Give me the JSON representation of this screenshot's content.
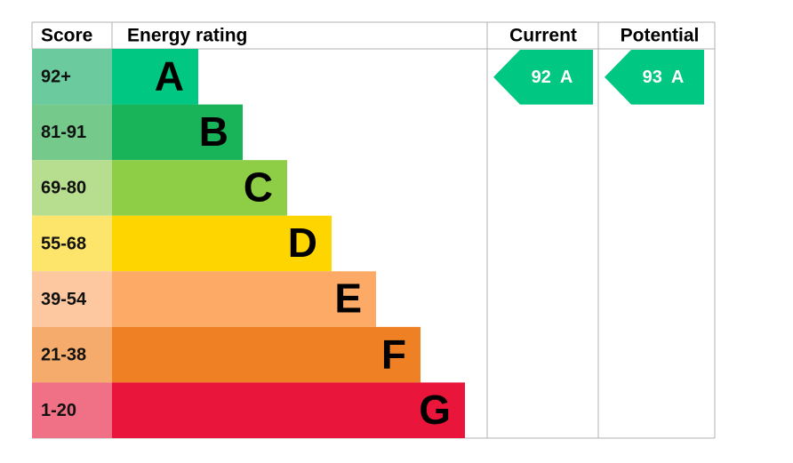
{
  "header": {
    "score": "Score",
    "rating": "Energy rating",
    "current": "Current",
    "potential": "Potential"
  },
  "bands": [
    {
      "score": "92+",
      "letter": "A",
      "color": "#00c781",
      "score_color": "#6bcb9f"
    },
    {
      "score": "81-91",
      "letter": "B",
      "color": "#19b459",
      "score_color": "#75c98b"
    },
    {
      "score": "69-80",
      "letter": "C",
      "color": "#8dce46",
      "score_color": "#b6de8e"
    },
    {
      "score": "55-68",
      "letter": "D",
      "color": "#ffd500",
      "score_color": "#fde46b"
    },
    {
      "score": "39-54",
      "letter": "E",
      "color": "#fcaa65",
      "score_color": "#fdc89f"
    },
    {
      "score": "21-38",
      "letter": "F",
      "color": "#ef8023",
      "score_color": "#f5ab6c"
    },
    {
      "score": "1-20",
      "letter": "G",
      "color": "#e9153b",
      "score_color": "#f07185"
    }
  ],
  "current": {
    "value": "92",
    "letter": "A"
  },
  "potential": {
    "value": "93",
    "letter": "A"
  }
}
